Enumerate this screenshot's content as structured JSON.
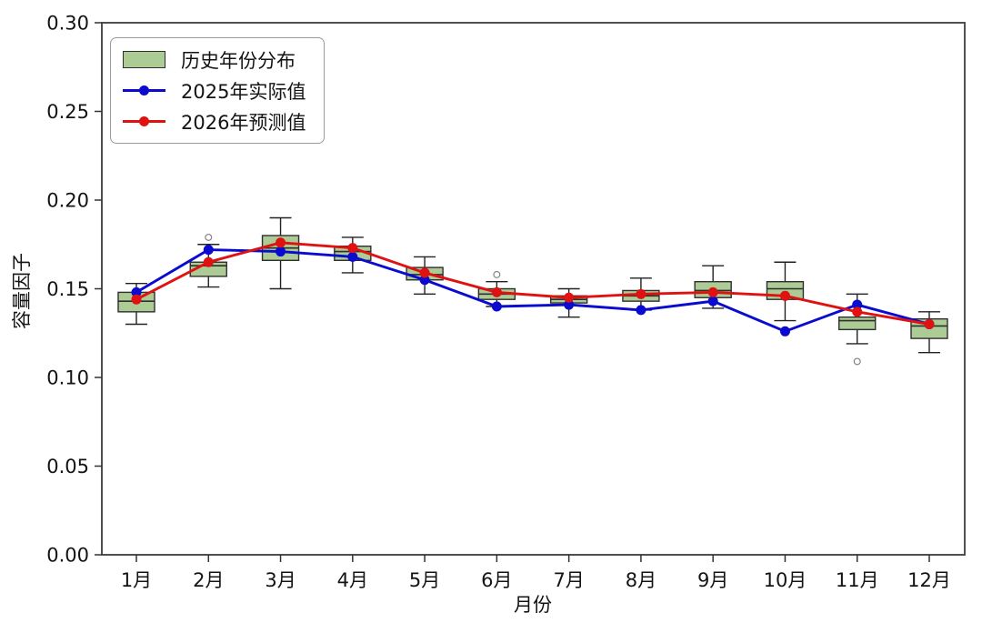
{
  "figure": {
    "background": "#ffffff",
    "frame_color": "#3c3c3c"
  },
  "legend": {
    "items": [
      {
        "label": "历史年份分布",
        "type": "patch",
        "color": "#accb95",
        "edge": "#2f2f2f"
      },
      {
        "label": "2025年实际值",
        "type": "line",
        "color": "#0b0bcf"
      },
      {
        "label": "2026年预测值",
        "type": "line",
        "color": "#df1111"
      }
    ]
  },
  "chart_data": {
    "type": "box+line",
    "title": "",
    "xlabel": "月份",
    "ylabel": "容量因子",
    "ylim": [
      0.0,
      0.3
    ],
    "yticks": [
      0.0,
      0.05,
      0.1,
      0.15,
      0.2,
      0.25,
      0.3
    ],
    "grid": false,
    "legend_position": "top-left",
    "categories": [
      "1月",
      "2月",
      "3月",
      "4月",
      "5月",
      "6月",
      "7月",
      "8月",
      "9月",
      "10月",
      "11月",
      "12月"
    ],
    "box_style": {
      "fill": "#accb95",
      "edge": "#2f2f2f"
    },
    "outlier_color": "#858585",
    "boxes": [
      {
        "low": 0.13,
        "q1": 0.137,
        "median": 0.143,
        "q3": 0.148,
        "high": 0.153,
        "outliers": []
      },
      {
        "low": 0.151,
        "q1": 0.157,
        "median": 0.163,
        "q3": 0.165,
        "high": 0.175,
        "outliers": [
          0.179
        ]
      },
      {
        "low": 0.15,
        "q1": 0.166,
        "median": 0.173,
        "q3": 0.18,
        "high": 0.19,
        "outliers": []
      },
      {
        "low": 0.159,
        "q1": 0.166,
        "median": 0.171,
        "q3": 0.174,
        "high": 0.179,
        "outliers": []
      },
      {
        "low": 0.147,
        "q1": 0.155,
        "median": 0.158,
        "q3": 0.162,
        "high": 0.168,
        "outliers": []
      },
      {
        "low": 0.14,
        "q1": 0.144,
        "median": 0.147,
        "q3": 0.15,
        "high": 0.154,
        "outliers": [
          0.158
        ]
      },
      {
        "low": 0.134,
        "q1": 0.142,
        "median": 0.144,
        "q3": 0.146,
        "high": 0.15,
        "outliers": []
      },
      {
        "low": 0.138,
        "q1": 0.143,
        "median": 0.146,
        "q3": 0.149,
        "high": 0.156,
        "outliers": []
      },
      {
        "low": 0.139,
        "q1": 0.145,
        "median": 0.149,
        "q3": 0.154,
        "high": 0.163,
        "outliers": []
      },
      {
        "low": 0.132,
        "q1": 0.144,
        "median": 0.15,
        "q3": 0.154,
        "high": 0.165,
        "outliers": []
      },
      {
        "low": 0.119,
        "q1": 0.127,
        "median": 0.132,
        "q3": 0.134,
        "high": 0.147,
        "outliers": [
          0.109
        ]
      },
      {
        "low": 0.114,
        "q1": 0.122,
        "median": 0.129,
        "q3": 0.133,
        "high": 0.137,
        "outliers": []
      }
    ],
    "series": [
      {
        "name": "2025年实际值",
        "color": "#0b0bcf",
        "values": [
          0.148,
          0.172,
          0.171,
          0.168,
          0.155,
          0.14,
          0.141,
          0.138,
          0.143,
          0.126,
          0.141,
          0.13
        ]
      },
      {
        "name": "2026年预测值",
        "color": "#df1111",
        "values": [
          0.144,
          0.165,
          0.176,
          0.173,
          0.159,
          0.148,
          0.145,
          0.147,
          0.148,
          0.146,
          0.137,
          0.13
        ]
      }
    ]
  }
}
